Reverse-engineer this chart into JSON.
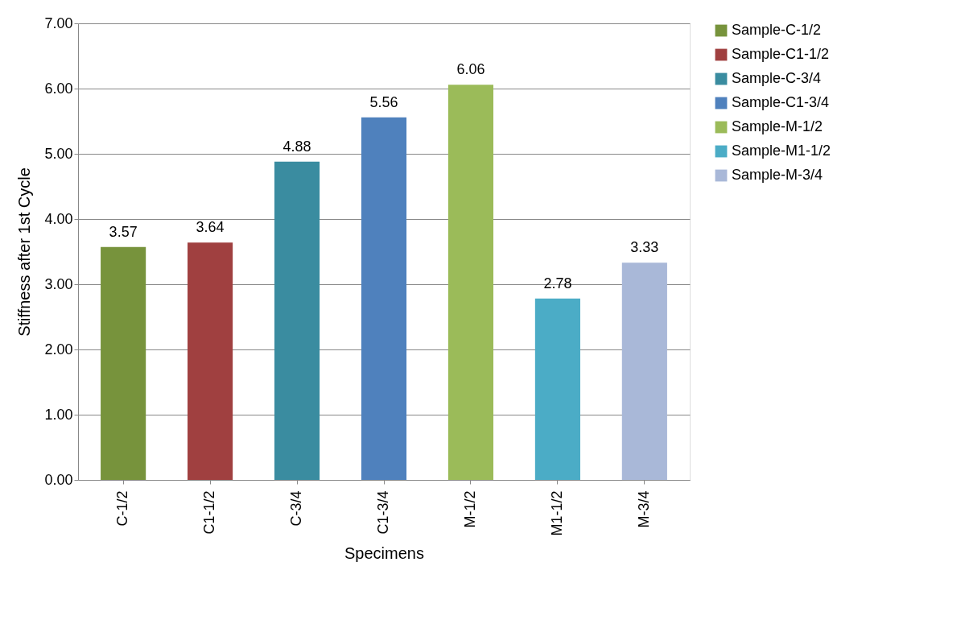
{
  "chart_data": {
    "type": "bar",
    "xlabel": "Specimens",
    "ylabel": "Stiffness after 1st Cycle",
    "categories": [
      "C-1/2",
      "C1-1/2",
      "C-3/4",
      "C1-3/4",
      "M-1/2",
      "M1-1/2",
      "M-3/4"
    ],
    "series": [
      {
        "name": "Sample-C-1/2",
        "color": "#77933c",
        "values": [
          3.57,
          null,
          null,
          null,
          null,
          null,
          null
        ]
      },
      {
        "name": "Sample-C1-1/2",
        "color": "#a04040",
        "values": [
          null,
          3.64,
          null,
          null,
          null,
          null,
          null
        ]
      },
      {
        "name": "Sample-C-3/4",
        "color": "#3a8ca0",
        "values": [
          null,
          null,
          4.88,
          null,
          null,
          null,
          null
        ]
      },
      {
        "name": "Sample-C1-3/4",
        "color": "#4f81bd",
        "values": [
          null,
          null,
          null,
          5.56,
          null,
          null,
          null
        ]
      },
      {
        "name": "Sample-M-1/2",
        "color": "#9bbb59",
        "values": [
          null,
          null,
          null,
          null,
          6.06,
          null,
          null
        ]
      },
      {
        "name": "Sample-M1-1/2",
        "color": "#4bacc6",
        "values": [
          null,
          null,
          null,
          null,
          null,
          2.78,
          null
        ]
      },
      {
        "name": "Sample-M-3/4",
        "color": "#a9b8d8",
        "values": [
          null,
          null,
          null,
          null,
          null,
          null,
          3.33
        ]
      }
    ],
    "ylim": [
      0,
      7
    ],
    "yticks": [
      {
        "value": 0,
        "label": "0.00"
      },
      {
        "value": 1,
        "label": "1.00"
      },
      {
        "value": 2,
        "label": "2.00"
      },
      {
        "value": 3,
        "label": "3.00"
      },
      {
        "value": 4,
        "label": "4.00"
      },
      {
        "value": 5,
        "label": "5.00"
      },
      {
        "value": 6,
        "label": "6.00"
      },
      {
        "value": 7,
        "label": "7.00"
      }
    ],
    "grid": "y",
    "legend": "right",
    "data_labels": true
  }
}
